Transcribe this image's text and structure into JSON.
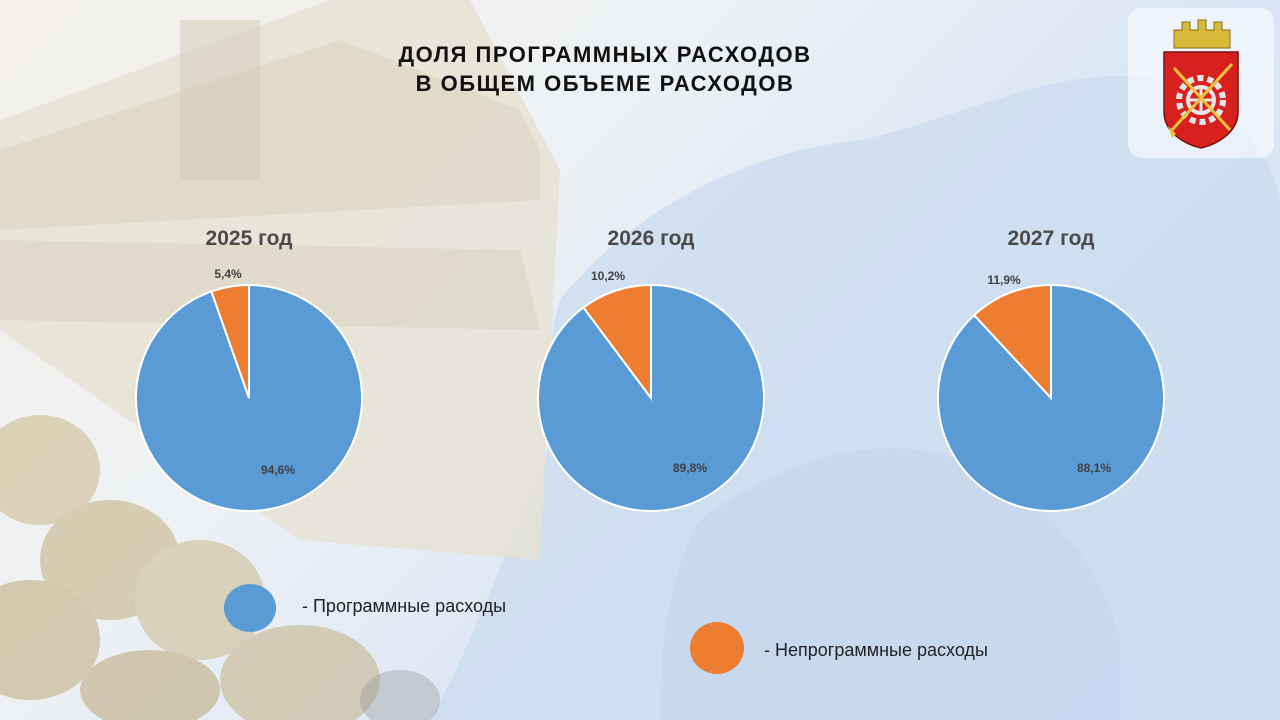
{
  "slide": {
    "title_line1": "ДОЛЯ ПРОГРАММНЫХ РАСХОДОВ",
    "title_line2": "В ОБЩЕМ ОБЪЕМЕ РАСХОДОВ",
    "emblem_icon": "city-coat-of-arms-icon"
  },
  "legend": {
    "items": [
      {
        "label": "- Программные расходы",
        "color": "#5b9bd5"
      },
      {
        "label": "- Непрограммные расходы",
        "color": "#ed7d31"
      }
    ]
  },
  "chart_data": [
    {
      "type": "pie",
      "title": "2025 год",
      "categories": [
        "Программные расходы",
        "Непрограммные расходы"
      ],
      "values": [
        94.6,
        5.4
      ],
      "labels": [
        "94,6%",
        "5,4%"
      ],
      "colors": [
        "#5b9bd5",
        "#ed7d31"
      ]
    },
    {
      "type": "pie",
      "title": "2026 год",
      "categories": [
        "Программные расходы",
        "Непрограммные расходы"
      ],
      "values": [
        89.8,
        10.2
      ],
      "labels": [
        "89,8%",
        "10,2%"
      ],
      "colors": [
        "#5b9bd5",
        "#ed7d31"
      ]
    },
    {
      "type": "pie",
      "title": "2027 год",
      "categories": [
        "Программные расходы",
        "Непрограммные расходы"
      ],
      "values": [
        88.1,
        11.9
      ],
      "labels": [
        "88,1%",
        "11,9%"
      ],
      "colors": [
        "#5b9bd5",
        "#ed7d31"
      ]
    }
  ]
}
